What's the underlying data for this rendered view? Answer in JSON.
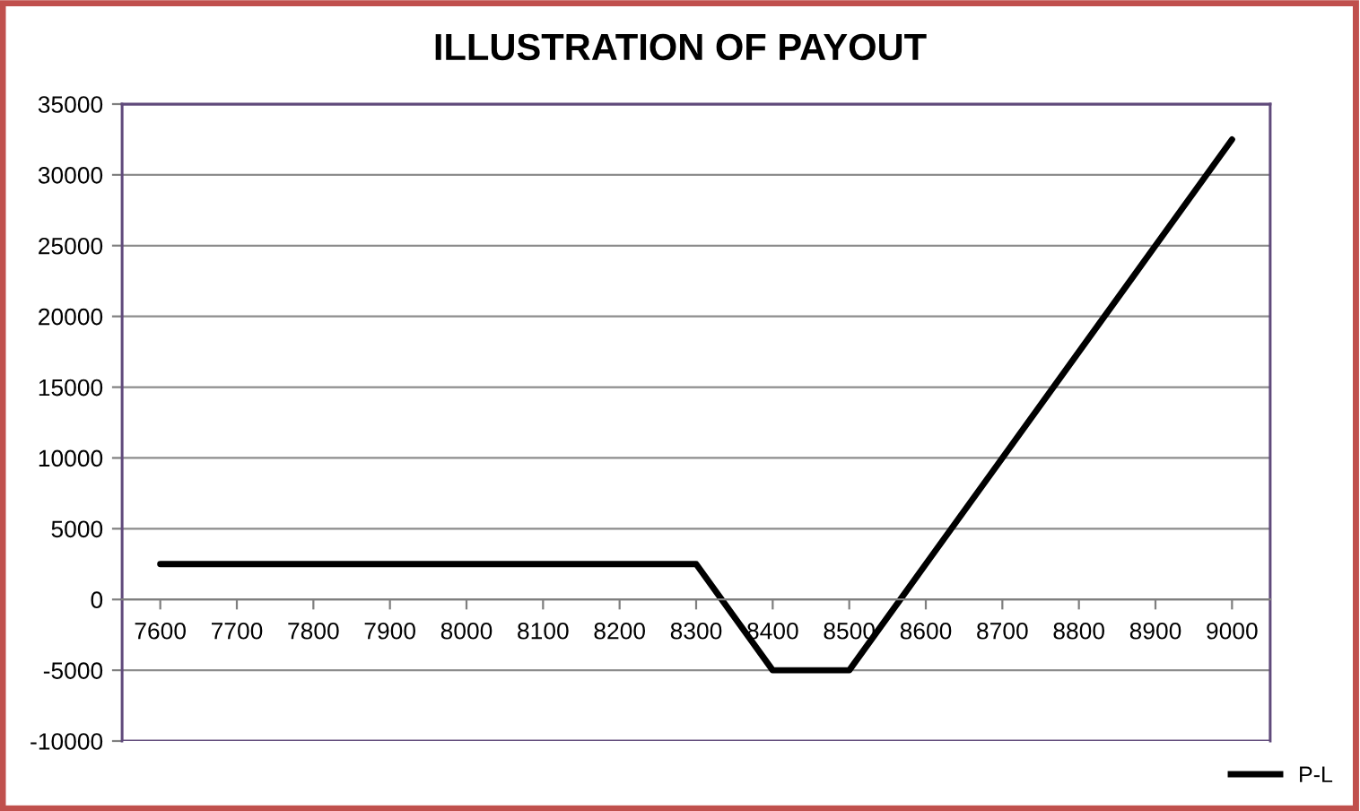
{
  "chart_data": {
    "type": "line",
    "title": "ILLUSTRATION OF PAYOUT",
    "categories": [
      "7600",
      "7700",
      "7800",
      "7900",
      "8000",
      "8100",
      "8200",
      "8300",
      "8400",
      "8500",
      "8600",
      "8700",
      "8800",
      "8900",
      "9000"
    ],
    "series": [
      {
        "name": "P-L",
        "color": "#000000",
        "values": [
          2500,
          2500,
          2500,
          2500,
          2500,
          2500,
          2500,
          2500,
          -5000,
          -5000,
          2500,
          10000,
          17500,
          25000,
          32500
        ]
      }
    ],
    "ylim": [
      -10000,
      35000
    ],
    "yticks": [
      -10000,
      -5000,
      0,
      5000,
      10000,
      15000,
      20000,
      25000,
      30000,
      35000
    ],
    "grid": "y",
    "legend": "bottom right",
    "marker": "none",
    "line_style": "solid"
  }
}
